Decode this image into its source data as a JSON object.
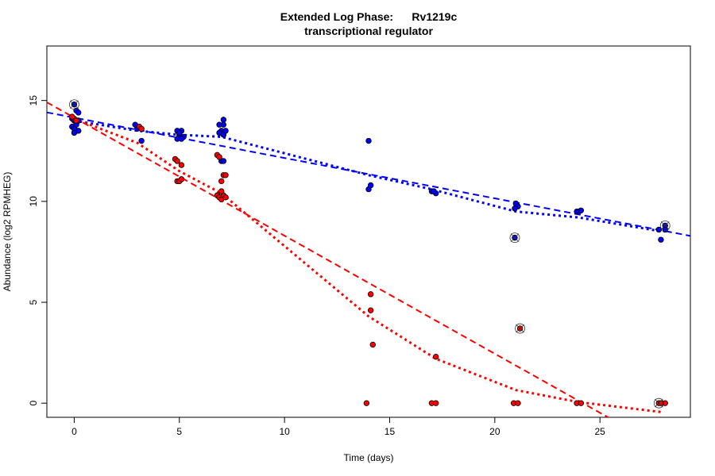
{
  "chart_data": {
    "type": "scatter",
    "title_line1": "Extended Log Phase:      Rv1219c",
    "title_line2": "transcriptional regulator",
    "xlabel": "Time  (days)",
    "ylabel": "Abundance  (log2 RPMHEG)",
    "xlim": [
      -1.3,
      29.3
    ],
    "ylim": [
      -0.7,
      17.7
    ],
    "xticks": [
      0,
      5,
      10,
      15,
      20,
      25
    ],
    "yticks": [
      0,
      5,
      10,
      15
    ],
    "grid": false,
    "colors": {
      "blue": "#0000ff",
      "red": "#ff0000"
    },
    "series": [
      {
        "color": "#0000ff",
        "points": [
          [
            0,
            14.8
          ],
          [
            0.1,
            14.5
          ],
          [
            0.2,
            14.4
          ],
          [
            0,
            14.0
          ],
          [
            -0.1,
            13.7
          ],
          [
            0.1,
            13.8
          ],
          [
            0,
            13.6
          ],
          [
            0.2,
            13.5
          ],
          [
            -0.1,
            14.1
          ],
          [
            0.2,
            14.0
          ],
          [
            0,
            13.4
          ],
          [
            2.9,
            13.8
          ],
          [
            3.0,
            13.6
          ],
          [
            3.2,
            13.0
          ],
          [
            4.9,
            13.5
          ],
          [
            5.0,
            13.3
          ],
          [
            5.1,
            13.5
          ],
          [
            4.9,
            13.1
          ],
          [
            5.2,
            13.2
          ],
          [
            5.0,
            13.4
          ],
          [
            5.1,
            13.1
          ],
          [
            5.0,
            11.0
          ],
          [
            6.9,
            13.8
          ],
          [
            7.1,
            14.05
          ],
          [
            7.1,
            13.8
          ],
          [
            7.0,
            13.5
          ],
          [
            6.9,
            13.4
          ],
          [
            7.1,
            13.3
          ],
          [
            7.2,
            13.5
          ],
          [
            7.0,
            12.0
          ],
          [
            7.1,
            12.0
          ],
          [
            14.0,
            13.0
          ],
          [
            14.0,
            10.6
          ],
          [
            14.1,
            10.8
          ],
          [
            17.0,
            10.5
          ],
          [
            17.2,
            10.4
          ],
          [
            17.1,
            10.5
          ],
          [
            21.0,
            9.9
          ],
          [
            21.1,
            9.75
          ],
          [
            20.95,
            9.65
          ],
          [
            20.95,
            8.2
          ],
          [
            23.9,
            9.5
          ],
          [
            24.0,
            9.5
          ],
          [
            24.1,
            9.55
          ],
          [
            27.8,
            8.6
          ],
          [
            28.1,
            8.8
          ],
          [
            28.1,
            8.6
          ],
          [
            27.9,
            8.1
          ]
        ],
        "outliers": [
          [
            0,
            14.8
          ],
          [
            20.95,
            8.2
          ],
          [
            28.1,
            8.8
          ]
        ],
        "fit_line": {
          "intercept": 14.15,
          "slope": -0.2
        },
        "mean_curve": [
          [
            0,
            14.0
          ],
          [
            3,
            13.5
          ],
          [
            5,
            13.3
          ],
          [
            7,
            13.2
          ],
          [
            14,
            11.3
          ],
          [
            17,
            10.6
          ],
          [
            21,
            9.5
          ],
          [
            24,
            9.2
          ],
          [
            28,
            8.5
          ]
        ]
      },
      {
        "color": "#ff0000",
        "points": [
          [
            0,
            14.1
          ],
          [
            0.1,
            14.0
          ],
          [
            -0.1,
            14.2
          ],
          [
            3.1,
            13.7
          ],
          [
            3.2,
            13.6
          ],
          [
            4.8,
            12.1
          ],
          [
            4.9,
            12.0
          ],
          [
            5.1,
            11.8
          ],
          [
            4.9,
            11.0
          ],
          [
            5.0,
            11.0
          ],
          [
            5.1,
            11.1
          ],
          [
            6.8,
            12.3
          ],
          [
            6.9,
            12.2
          ],
          [
            7.0,
            11.0
          ],
          [
            7.1,
            11.3
          ],
          [
            7.2,
            11.3
          ],
          [
            6.8,
            10.3
          ],
          [
            6.9,
            10.2
          ],
          [
            7.0,
            10.1
          ],
          [
            7.1,
            10.3
          ],
          [
            7.2,
            10.2
          ],
          [
            7.0,
            10.5
          ],
          [
            14.1,
            5.4
          ],
          [
            14.1,
            4.6
          ],
          [
            14.2,
            2.9
          ],
          [
            13.9,
            0
          ],
          [
            17.2,
            2.3
          ],
          [
            17.0,
            0
          ],
          [
            17.2,
            0
          ],
          [
            20.9,
            0
          ],
          [
            21.1,
            0
          ],
          [
            21.2,
            3.7
          ],
          [
            23.9,
            0
          ],
          [
            24.1,
            0
          ],
          [
            27.8,
            0
          ],
          [
            27.9,
            0
          ],
          [
            28.1,
            0
          ]
        ],
        "outliers": [
          [
            21.2,
            3.7
          ],
          [
            27.8,
            0
          ]
        ],
        "fit_line": {
          "intercept": 14.15,
          "slope": -0.585
        },
        "mean_curve": [
          [
            0,
            14.1
          ],
          [
            3,
            12.9
          ],
          [
            5,
            11.5
          ],
          [
            7,
            10.4
          ],
          [
            14,
            4.3
          ],
          [
            17.2,
            2.2
          ],
          [
            21,
            0.65
          ],
          [
            24,
            0.05
          ],
          [
            28,
            -0.45
          ]
        ]
      }
    ]
  }
}
